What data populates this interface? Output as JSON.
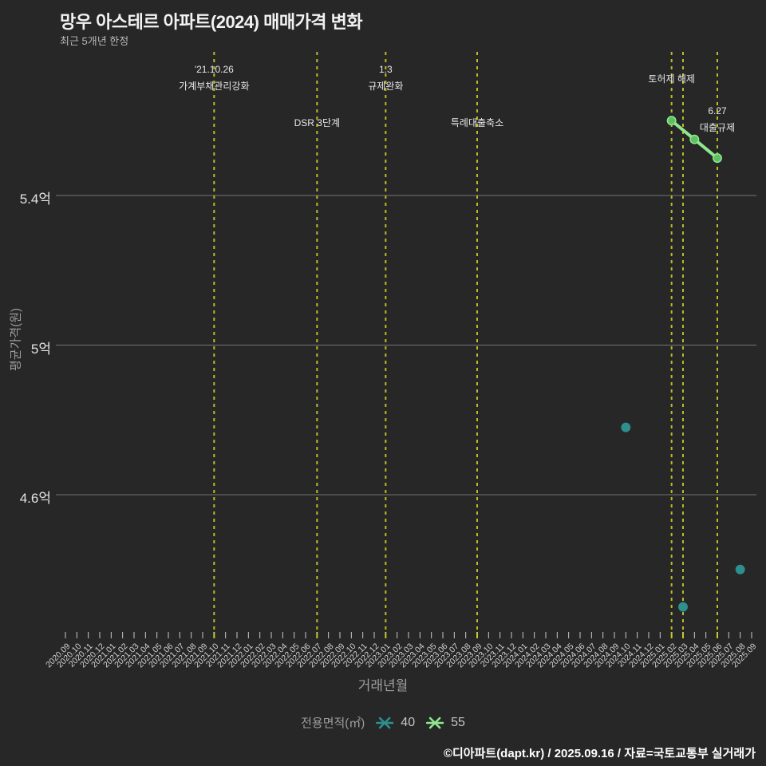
{
  "title": "망우 아스테르 아파트(2024) 매매가격 변화",
  "subtitle": "최근 5개년 한정",
  "footer": "©디아파트(dapt.kr) / 2025.09.16 / 자료=국토교통부 실거래가",
  "chart_data": {
    "type": "scatter",
    "xlabel": "거래년월",
    "ylabel": "평균가격(원)",
    "y_ticks": [
      {
        "label": "5.4억",
        "value": 5.4
      },
      {
        "label": "5억",
        "value": 5.0
      },
      {
        "label": "4.6억",
        "value": 4.6
      }
    ],
    "ylim_eok": [
      4.23,
      5.78
    ],
    "grid": true,
    "x_categories": [
      "2020.09",
      "2020.10",
      "2020.11",
      "2020.12",
      "2021.01",
      "2021.02",
      "2021.03",
      "2021.04",
      "2021.05",
      "2021.06",
      "2021.07",
      "2021.08",
      "2021.09",
      "2021.10",
      "2021.11",
      "2021.12",
      "2022.01",
      "2022.02",
      "2022.03",
      "2022.04",
      "2022.05",
      "2022.06",
      "2022.07",
      "2022.08",
      "2022.09",
      "2022.10",
      "2022.11",
      "2022.12",
      "2023.01",
      "2023.02",
      "2023.03",
      "2023.04",
      "2023.05",
      "2023.06",
      "2023.07",
      "2023.08",
      "2023.09",
      "2023.10",
      "2023.11",
      "2023.12",
      "2024.01",
      "2024.02",
      "2024.03",
      "2024.04",
      "2024.05",
      "2024.06",
      "2024.07",
      "2024.08",
      "2024.09",
      "2024.10",
      "2024.11",
      "2024.12",
      "2025.01",
      "2025.02",
      "2025.03",
      "2025.04",
      "2025.05",
      "2025.06",
      "2025.07",
      "2025.08",
      "2025.09"
    ],
    "series": [
      {
        "name": "40",
        "mode": "markers",
        "color": "#2e8f8f",
        "marker_color": "#2e8f8f",
        "points": [
          {
            "x": "2024.10",
            "y_eok": 4.78
          },
          {
            "x": "2025.03",
            "y_eok": 4.3
          },
          {
            "x": "2025.08",
            "y_eok": 4.4
          }
        ]
      },
      {
        "name": "55",
        "mode": "lines+markers",
        "color": "#90e88e",
        "marker_color": "#5fc063",
        "points": [
          {
            "x": "2025.02",
            "y_eok": 5.6
          },
          {
            "x": "2025.04",
            "y_eok": 5.55
          },
          {
            "x": "2025.06",
            "y_eok": 5.5
          }
        ]
      }
    ],
    "events": [
      {
        "x": "2021.10",
        "row": "top",
        "label_lines": [
          "'21.10.26",
          "가계부채관리강화"
        ]
      },
      {
        "x": "2022.07",
        "row": "lower",
        "label_lines": [
          "DSR 3단계"
        ]
      },
      {
        "x": "2023.01",
        "row": "top",
        "label_lines": [
          "1.3",
          "규제완화"
        ]
      },
      {
        "x": "2023.09",
        "row": "lower",
        "label_lines": [
          "특례대출축소"
        ]
      },
      {
        "x": "2025.02",
        "row": "upper",
        "label_lines": [
          "토허제 해제"
        ]
      },
      {
        "x": "2025.03",
        "row": "upper",
        "label_lines": []
      },
      {
        "x": "2025.06",
        "row": "mid",
        "label_lines": [
          "6.27",
          "대출규제"
        ]
      }
    ],
    "legend": {
      "title": "전용면적(㎡)",
      "entries": [
        "40",
        "55"
      ]
    }
  },
  "colors": {
    "background": "#272727",
    "title": "#f2f2f2",
    "subtitle": "#b8b8b8",
    "gridline": "#8a8a8a",
    "event_line": "#b9bd28",
    "tick": "#c9c9c9",
    "event_tick": "#c6ca2c",
    "axis_label": "#9e9e9e",
    "tick_label": "#d2d2d2",
    "y_tick_label": "#e3e3e3",
    "annotation": "#e8e8e8",
    "footer": "#ffffff",
    "legend_text": "#c6c6c6"
  }
}
